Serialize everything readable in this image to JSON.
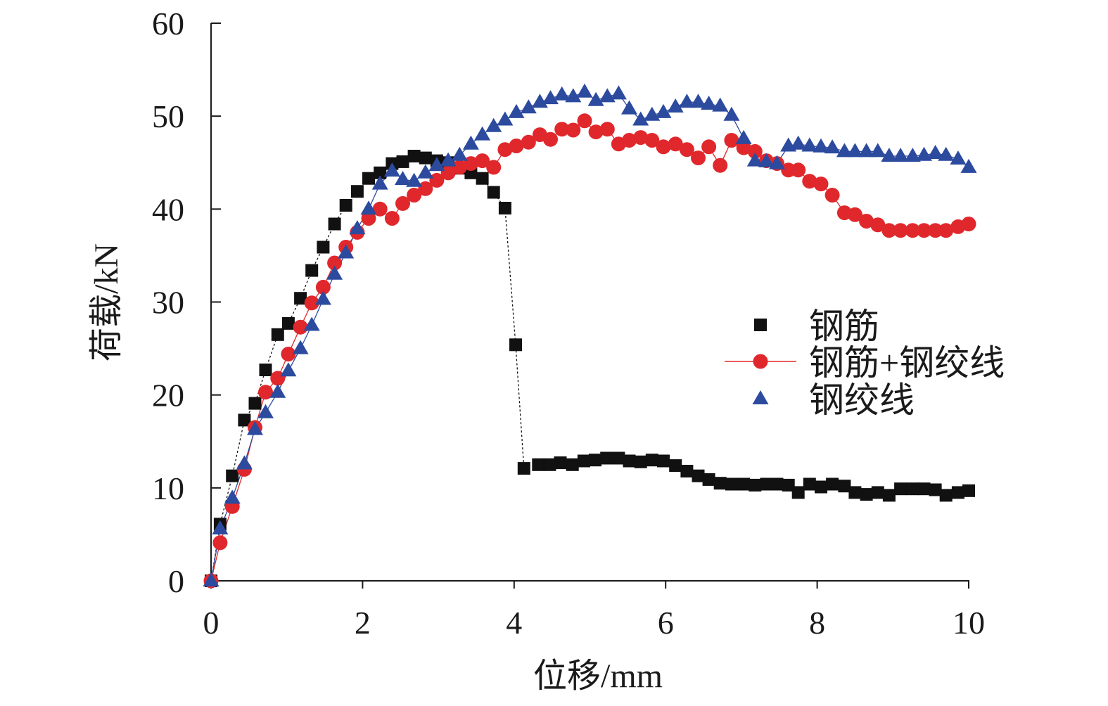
{
  "chart_data": {
    "type": "line",
    "xlabel": "位移/mm",
    "ylabel": "荷载/kN",
    "xlim": [
      0,
      10
    ],
    "ylim": [
      0,
      60
    ],
    "x_ticks": [
      0,
      2,
      4,
      6,
      8,
      10
    ],
    "y_ticks": [
      0,
      10,
      20,
      30,
      40,
      50,
      60
    ],
    "grid": false,
    "legend_position": "center-right",
    "series": [
      {
        "name": "钢筋",
        "color": "#111111",
        "marker": "square",
        "line_style": "dotted",
        "x": [
          0,
          0.12,
          0.28,
          0.44,
          0.58,
          0.72,
          0.88,
          1.02,
          1.18,
          1.33,
          1.48,
          1.63,
          1.78,
          1.93,
          2.08,
          2.23,
          2.39,
          2.53,
          2.68,
          2.83,
          2.98,
          3.13,
          3.28,
          3.43,
          3.58,
          3.73,
          3.88,
          4.02,
          4.13,
          4.32,
          4.47,
          4.61,
          4.77,
          4.92,
          5.07,
          5.22,
          5.38,
          5.52,
          5.67,
          5.82,
          5.97,
          6.13,
          6.28,
          6.43,
          6.57,
          6.72,
          6.87,
          7.03,
          7.18,
          7.33,
          7.47,
          7.62,
          7.75,
          7.9,
          8.05,
          8.2,
          8.36,
          8.5,
          8.65,
          8.8,
          8.95,
          9.1,
          9.26,
          9.41,
          9.56,
          9.7,
          9.86,
          10.0
        ],
        "y": [
          0,
          6.1,
          11.3,
          17.3,
          19.1,
          22.7,
          26.5,
          27.7,
          30.4,
          33.4,
          35.9,
          38.4,
          40.4,
          41.9,
          43.3,
          43.9,
          44.9,
          45.1,
          45.7,
          45.5,
          45.2,
          45.0,
          44.4,
          43.9,
          43.3,
          41.8,
          40.1,
          25.4,
          12.1,
          12.5,
          12.5,
          12.7,
          12.5,
          12.9,
          13.0,
          13.2,
          13.2,
          12.9,
          12.8,
          13.0,
          12.9,
          12.4,
          11.8,
          11.3,
          10.9,
          10.5,
          10.4,
          10.4,
          10.3,
          10.4,
          10.4,
          10.3,
          9.5,
          10.4,
          10.1,
          10.4,
          10.2,
          9.5,
          9.3,
          9.5,
          9.2,
          9.9,
          9.9,
          9.9,
          9.8,
          9.2,
          9.5,
          9.7
        ]
      },
      {
        "name": "钢筋+钢绞线",
        "color": "#e0282c",
        "marker": "circle",
        "line_style": "solid",
        "x": [
          0,
          0.12,
          0.28,
          0.44,
          0.58,
          0.72,
          0.88,
          1.02,
          1.18,
          1.33,
          1.48,
          1.63,
          1.78,
          1.93,
          2.08,
          2.23,
          2.39,
          2.53,
          2.68,
          2.83,
          2.98,
          3.13,
          3.28,
          3.43,
          3.58,
          3.73,
          3.88,
          4.03,
          4.19,
          4.34,
          4.48,
          4.63,
          4.78,
          4.93,
          5.08,
          5.23,
          5.38,
          5.52,
          5.67,
          5.82,
          5.97,
          6.13,
          6.28,
          6.43,
          6.57,
          6.72,
          6.87,
          7.03,
          7.18,
          7.33,
          7.47,
          7.62,
          7.75,
          7.9,
          8.05,
          8.2,
          8.36,
          8.5,
          8.65,
          8.8,
          8.95,
          9.1,
          9.26,
          9.41,
          9.56,
          9.7,
          9.86,
          10.0
        ],
        "y": [
          0,
          4.1,
          8.0,
          12.0,
          16.5,
          20.3,
          21.8,
          24.4,
          27.3,
          29.9,
          31.6,
          34.2,
          35.9,
          37.5,
          39.0,
          40.0,
          39.0,
          40.6,
          41.5,
          42.2,
          43.1,
          43.9,
          44.5,
          44.9,
          45.2,
          44.5,
          46.4,
          46.8,
          47.2,
          48.0,
          47.5,
          48.6,
          48.5,
          49.5,
          48.3,
          48.6,
          47.0,
          47.4,
          47.7,
          47.4,
          46.7,
          47.0,
          46.4,
          45.5,
          46.7,
          44.7,
          47.4,
          46.6,
          46.2,
          45.2,
          44.9,
          44.2,
          44.2,
          43.0,
          42.7,
          41.5,
          39.6,
          39.4,
          38.7,
          38.3,
          37.7,
          37.7,
          37.7,
          37.7,
          37.7,
          37.7,
          38.1,
          38.4
        ]
      },
      {
        "name": "钢绞线",
        "color": "#2c4b9f",
        "marker": "triangle",
        "line_style": "solid",
        "x": [
          0,
          0.12,
          0.28,
          0.44,
          0.58,
          0.72,
          0.88,
          1.02,
          1.18,
          1.33,
          1.48,
          1.63,
          1.78,
          1.93,
          2.08,
          2.23,
          2.39,
          2.53,
          2.68,
          2.83,
          2.98,
          3.13,
          3.28,
          3.43,
          3.58,
          3.73,
          3.88,
          4.03,
          4.19,
          4.34,
          4.48,
          4.63,
          4.78,
          4.93,
          5.08,
          5.23,
          5.38,
          5.52,
          5.67,
          5.82,
          5.97,
          6.13,
          6.28,
          6.43,
          6.57,
          6.72,
          6.87,
          7.03,
          7.18,
          7.33,
          7.47,
          7.62,
          7.75,
          7.9,
          8.05,
          8.2,
          8.36,
          8.5,
          8.65,
          8.8,
          8.95,
          9.1,
          9.26,
          9.41,
          9.56,
          9.7,
          9.86,
          10.0
        ],
        "y": [
          0,
          5.6,
          8.9,
          12.6,
          16.3,
          18.1,
          20.3,
          22.6,
          25.0,
          27.5,
          30.3,
          33.0,
          35.3,
          37.9,
          40.0,
          42.7,
          44.1,
          43.2,
          43.0,
          43.9,
          44.7,
          45.2,
          45.8,
          47.0,
          48.0,
          48.9,
          49.6,
          50.4,
          50.9,
          51.5,
          51.9,
          52.3,
          52.1,
          52.6,
          51.7,
          52.1,
          52.4,
          50.8,
          49.6,
          50.1,
          50.4,
          51.0,
          51.5,
          51.5,
          51.3,
          51.1,
          50.1,
          47.6,
          45.2,
          45.1,
          44.9,
          46.8,
          47.0,
          46.8,
          46.7,
          46.6,
          46.2,
          46.2,
          46.2,
          46.2,
          45.7,
          45.7,
          45.7,
          45.8,
          46.0,
          45.8,
          45.4,
          44.5
        ]
      }
    ]
  }
}
